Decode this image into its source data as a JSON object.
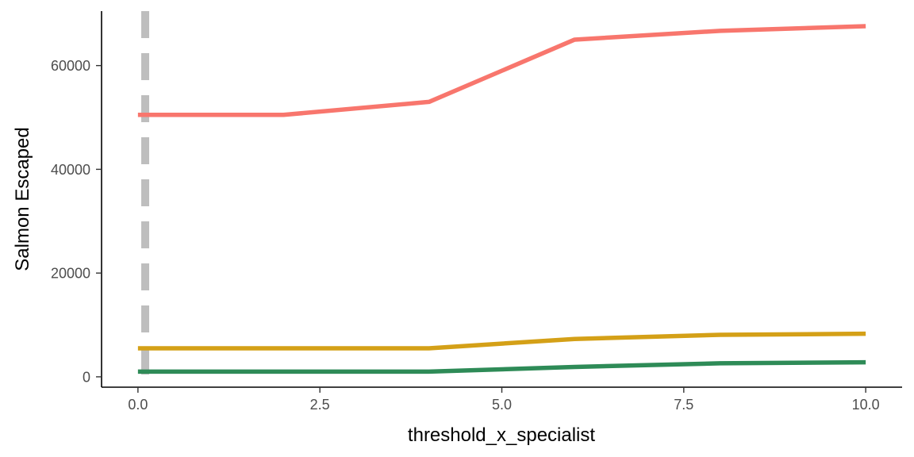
{
  "chart_data": {
    "type": "line",
    "xlabel": "threshold_x_specialist",
    "ylabel": "Salmon Escaped",
    "xlim": [
      -0.5,
      10.5
    ],
    "ylim": [
      -2000,
      70500
    ],
    "x_ticks": [
      0,
      2.5,
      5,
      7.5,
      10
    ],
    "x_tick_labels": [
      "0.0",
      "2.5",
      "5.0",
      "7.5",
      "10.0"
    ],
    "y_ticks": [
      0,
      20000,
      40000,
      60000
    ],
    "y_tick_labels": [
      "0",
      "20000",
      "40000",
      "60000"
    ],
    "grid": false,
    "legend": "none",
    "vline": {
      "x": 0.1,
      "color": "#bebebe",
      "style": "dashed"
    },
    "series": [
      {
        "color": "#f8766d",
        "x": [
          0,
          2,
          4,
          6,
          8,
          10
        ],
        "y": [
          50500,
          50500,
          53000,
          65000,
          66700,
          67600
        ]
      },
      {
        "color": "#d4a017",
        "x": [
          0,
          2,
          4,
          6,
          8,
          10
        ],
        "y": [
          5500,
          5500,
          5500,
          7300,
          8100,
          8300
        ]
      },
      {
        "color": "#2e8b57",
        "x": [
          0,
          2,
          4,
          6,
          8,
          10
        ],
        "y": [
          1000,
          1000,
          1000,
          1900,
          2600,
          2800
        ]
      }
    ]
  }
}
